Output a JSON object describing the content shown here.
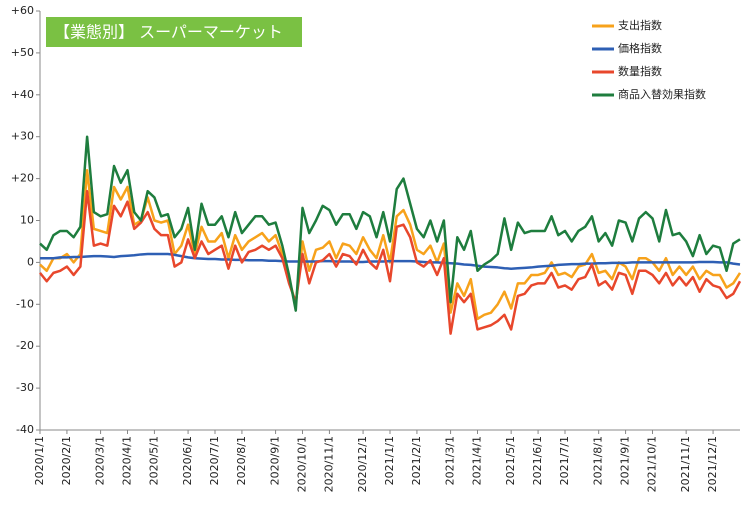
{
  "chart_data": {
    "type": "line",
    "title": "【業態別】 スーパーマーケット",
    "categories": [
      "2020/1/1",
      null,
      null,
      null,
      "2020/2/1",
      null,
      null,
      null,
      null,
      "2020/3/1",
      null,
      null,
      null,
      "2020/4/1",
      null,
      null,
      null,
      "2020/5/1",
      null,
      null,
      null,
      null,
      "2020/6/1",
      null,
      null,
      null,
      "2020/7/1",
      null,
      null,
      null,
      "2020/8/1",
      null,
      null,
      null,
      null,
      "2020/9/1",
      null,
      null,
      null,
      "2020/10/1",
      null,
      null,
      null,
      "2020/11/1",
      null,
      null,
      null,
      null,
      "2020/12/1",
      null,
      null,
      null,
      "2021/1/1",
      null,
      null,
      null,
      "2021/2/1",
      null,
      null,
      null,
      null,
      "2021/3/1",
      null,
      null,
      null,
      "2021/4/1",
      null,
      null,
      null,
      null,
      "2021/5/1",
      null,
      null,
      null,
      "2021/6/1",
      null,
      null,
      null,
      "2021/7/1",
      null,
      null,
      null,
      null,
      "2021/8/1",
      null,
      null,
      null,
      "2021/9/1",
      null,
      null,
      null,
      "2021/10/1",
      null,
      null,
      null,
      null,
      "2021/11/1",
      null,
      null,
      null,
      "2021/12/1",
      null,
      null,
      null,
      null
    ],
    "series": [
      {
        "name": "支出指数",
        "color": "#f7a21b",
        "values": [
          -0.5,
          -2,
          1,
          1,
          2,
          0,
          2,
          22,
          8,
          7.5,
          7,
          18,
          15,
          18,
          9,
          10,
          15.5,
          10,
          9.5,
          10,
          2,
          4,
          9,
          2,
          8.5,
          5,
          5,
          7,
          1,
          6.5,
          3,
          5,
          6,
          7,
          5,
          6.5,
          2,
          -4,
          -10,
          5,
          -2,
          3,
          3.5,
          5,
          1,
          4.5,
          4,
          2,
          6,
          3,
          1,
          6.5,
          0,
          11,
          12.5,
          9,
          3,
          2,
          4,
          0,
          4.5,
          -12,
          -5,
          -8,
          -4,
          -13.5,
          -12.5,
          -12,
          -10,
          -7,
          -11,
          -5,
          -5,
          -3,
          -3,
          -2.5,
          0,
          -3,
          -2.5,
          -3.5,
          -1,
          -0.5,
          2,
          -2.5,
          -2,
          -4,
          0,
          -1,
          -4,
          1,
          1,
          0,
          -2,
          1,
          -3,
          -1,
          -3,
          -1,
          -4,
          -2,
          -3,
          -3,
          -6,
          -5,
          -2.5
        ]
      },
      {
        "name": "価格指数",
        "color": "#2e5fb4",
        "values": [
          1,
          1,
          1,
          1.2,
          1.2,
          1.3,
          1.3,
          1.4,
          1.5,
          1.5,
          1.4,
          1.3,
          1.5,
          1.6,
          1.7,
          1.9,
          2,
          2,
          2,
          2,
          1.8,
          1.5,
          1.2,
          1,
          0.9,
          0.8,
          0.8,
          0.7,
          0.7,
          0.6,
          0.6,
          0.5,
          0.5,
          0.5,
          0.4,
          0.4,
          0.3,
          0.2,
          0.2,
          0.2,
          0.2,
          0.2,
          0.3,
          0.3,
          0.2,
          0.2,
          0.2,
          0.1,
          0.1,
          0.2,
          0.2,
          0.2,
          0.3,
          0.3,
          0.3,
          0.3,
          0.2,
          0.1,
          0,
          0,
          -0.1,
          -0.2,
          -0.3,
          -0.5,
          -0.6,
          -0.8,
          -1,
          -1.1,
          -1.2,
          -1.4,
          -1.5,
          -1.4,
          -1.3,
          -1.2,
          -1,
          -0.9,
          -0.8,
          -0.6,
          -0.5,
          -0.4,
          -0.4,
          -0.3,
          -0.3,
          -0.2,
          -0.2,
          -0.1,
          -0.1,
          -0.1,
          0,
          0,
          0,
          0,
          0,
          0,
          0,
          0,
          0,
          0,
          0.1,
          0.1,
          0.1,
          0,
          0,
          -0.3,
          -0.5
        ]
      },
      {
        "name": "数量指数",
        "color": "#e8472c",
        "values": [
          -2.5,
          -4.5,
          -2.5,
          -2,
          -1,
          -3,
          -1,
          17,
          4,
          4.5,
          4,
          13.5,
          11,
          14.5,
          8,
          9.5,
          12,
          8,
          6.5,
          6.5,
          -1,
          0,
          5.5,
          1,
          5,
          2,
          3,
          4,
          -1.5,
          4,
          0,
          2.5,
          3,
          4,
          3,
          4,
          1,
          -5,
          -9.5,
          2,
          -5,
          0,
          0.5,
          2,
          -1,
          2,
          1.5,
          -0.5,
          3,
          0,
          -1.5,
          3,
          -4.5,
          8.5,
          9,
          6,
          0,
          -1,
          0.5,
          -3,
          1,
          -17,
          -7.5,
          -9.5,
          -7.5,
          -16,
          -15.5,
          -15,
          -14,
          -12.5,
          -16,
          -8,
          -7.5,
          -5.5,
          -5,
          -5,
          -2.5,
          -6,
          -5.5,
          -6.5,
          -4,
          -3.5,
          -0.5,
          -5.5,
          -4.5,
          -6.5,
          -2.5,
          -3,
          -7.5,
          -2,
          -2,
          -3,
          -5,
          -2.5,
          -5.5,
          -3.5,
          -5.5,
          -3.5,
          -7,
          -4,
          -5.5,
          -6,
          -8.5,
          -7.5,
          -4.5
        ]
      },
      {
        "name": "商品入替効果指数",
        "color": "#1e7d3e",
        "values": [
          4.5,
          3,
          6.5,
          7.5,
          7.5,
          6,
          8.5,
          30,
          12,
          11,
          11.5,
          23,
          19,
          22,
          12,
          10,
          17,
          15.5,
          11,
          11.5,
          6,
          8,
          13,
          3,
          14,
          9,
          9,
          11,
          6,
          12,
          7,
          9,
          11,
          11,
          9,
          9.5,
          4,
          -3,
          -11.5,
          13,
          7,
          10,
          13.5,
          12.5,
          9,
          11.5,
          11.5,
          8,
          12,
          11,
          6,
          12,
          5,
          17.5,
          20,
          14,
          8,
          6,
          10,
          5,
          10,
          -9.5,
          6,
          3,
          7.5,
          -2,
          -0.5,
          0.5,
          2,
          10.5,
          3,
          9.5,
          7,
          7.5,
          7.5,
          7.5,
          11,
          6.5,
          7.5,
          5,
          7.5,
          8.5,
          11,
          5,
          7,
          4,
          10,
          9.5,
          5,
          10.5,
          12,
          10.5,
          5,
          12.5,
          6.5,
          7,
          5,
          1.5,
          6.5,
          2,
          4,
          3.5,
          -2,
          4.5,
          5.5
        ]
      }
    ],
    "ylim": [
      -40,
      60
    ],
    "yticks": [
      -40,
      -30,
      -20,
      -10,
      0,
      10,
      {
        "value": 20,
        "label": "+20"
      },
      {
        "value": 30,
        "label": "+30"
      },
      {
        "value": 40,
        "label": "+40"
      },
      {
        "value": 50,
        "label": "+50"
      },
      {
        "value": 60,
        "label": "+60"
      }
    ],
    "grid": false,
    "title_color": "#7ac143",
    "legend": "upper right"
  }
}
